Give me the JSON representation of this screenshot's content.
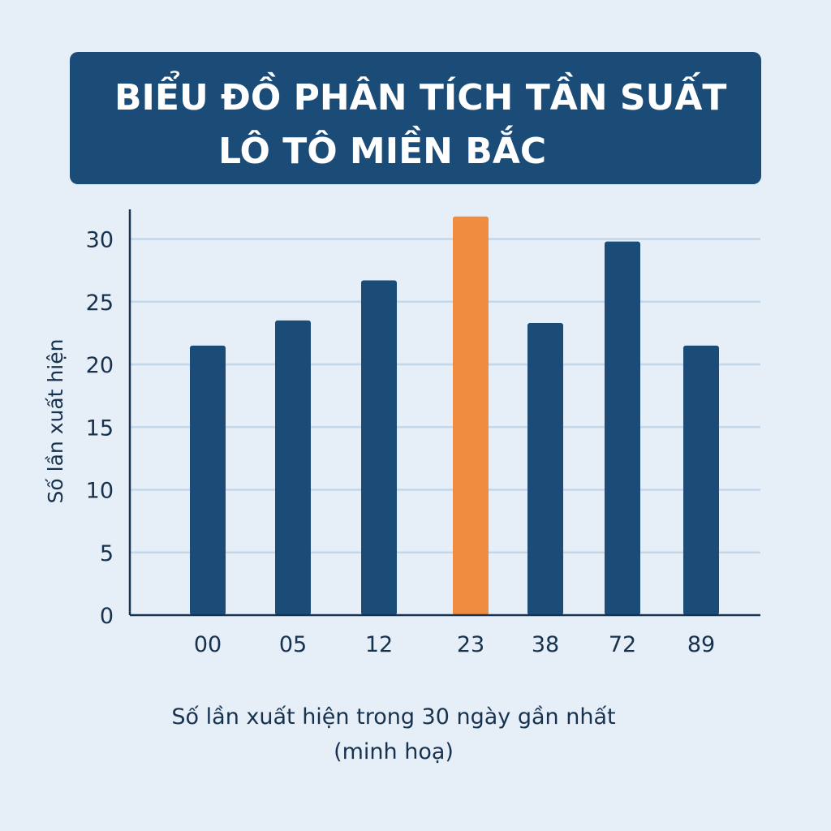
{
  "title": {
    "line1": "BIỂU ĐỒ PHÂN TÍCH TẦN SUẤT",
    "line2": "LÔ TÔ MIỀN BẮC"
  },
  "caption": {
    "line1": "Số lần xuất hiện trong 30 ngày gần nhất",
    "line2": "(minh hoạ)"
  },
  "colors": {
    "background": "#e6eef8",
    "title_bg": "#1b4b77",
    "bar": "#1b4b77",
    "highlight_bar": "#ef8c3f",
    "grid": "#c3d6ea",
    "axis": "#17324f"
  },
  "chart_data": {
    "type": "bar",
    "title": "BIỂU ĐỒ PHÂN TÍCH TẦN SUẤT LÔ TÔ MIỀN BẮC",
    "xlabel": "",
    "ylabel": "Số lần xuất hiện",
    "categories": [
      "00",
      "05",
      "12",
      "23",
      "38",
      "72",
      "89"
    ],
    "values": [
      21.5,
      23.5,
      26.7,
      31.8,
      23.3,
      29.8,
      21.5
    ],
    "highlight": "23",
    "yticks": [
      0,
      5,
      10,
      15,
      20,
      25,
      30
    ],
    "ylim": [
      0,
      32.5
    ],
    "grid": true,
    "legend": "none"
  }
}
